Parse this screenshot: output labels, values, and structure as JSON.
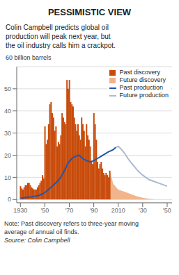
{
  "chart_data": {
    "type": "bar",
    "title": "PESSIMISTIC VIEW",
    "subtitle": "Colin Campbell predicts global oil\nproduction will peak next year, but\nthe oil industry calls him a crackpot.",
    "ylabel": "60 billion barrels",
    "note": "Note: Past discovery refers to three-year moving\naverage of annual oil finds.\nSource: Colin Campbell",
    "xlim": [
      1927,
      2054
    ],
    "xticks": [
      1930,
      {
        "value": 1950,
        "label": "'50"
      },
      {
        "value": 1970,
        "label": "'70"
      },
      {
        "value": 1990,
        "label": "'90"
      },
      2010,
      {
        "value": 2030,
        "label": "'30"
      },
      {
        "value": 2050,
        "label": "'50"
      }
    ],
    "ylim": [
      -1.5,
      60
    ],
    "yticks": [
      0,
      10,
      20,
      30,
      40,
      50
    ],
    "grid": true,
    "legend": "upper right",
    "series": [
      {
        "name": "Past discovery",
        "type": "bar",
        "color": "#C84B0A",
        "x": [
          1930,
          1931,
          1932,
          1933,
          1934,
          1935,
          1936,
          1937,
          1938,
          1939,
          1940,
          1941,
          1942,
          1943,
          1944,
          1945,
          1946,
          1947,
          1948,
          1949,
          1950,
          1951,
          1952,
          1953,
          1954,
          1955,
          1956,
          1957,
          1958,
          1959,
          1960,
          1961,
          1962,
          1963,
          1964,
          1965,
          1966,
          1967,
          1968,
          1969,
          1970,
          1971,
          1972,
          1973,
          1974,
          1975,
          1976,
          1977,
          1978,
          1979,
          1980,
          1981,
          1982,
          1983,
          1984,
          1985,
          1986,
          1987,
          1988,
          1989,
          1990,
          1991,
          1992,
          1993,
          1994,
          1995,
          1996,
          1997,
          1998,
          1999,
          2000,
          2001,
          2002,
          2003
        ],
        "values": [
          6,
          5,
          4.5,
          5.5,
          6.5,
          6.5,
          7.5,
          7.5,
          6.5,
          5.5,
          5,
          4.5,
          4.5,
          4.5,
          5.5,
          6.5,
          7.5,
          8.5,
          11,
          9.5,
          33,
          25,
          27,
          34,
          43,
          44,
          39,
          37,
          31,
          33,
          24,
          26,
          25,
          29,
          39,
          37,
          35,
          34,
          54,
          50,
          54,
          44,
          43,
          42,
          37,
          34,
          31,
          34,
          29,
          27,
          37,
          34,
          31,
          24,
          34,
          29,
          27,
          24,
          17,
          16,
          39,
          34,
          27,
          17,
          14,
          16,
          17,
          14,
          12,
          11,
          12,
          11,
          10,
          13
        ]
      },
      {
        "name": "Future discovery",
        "type": "area",
        "color": "#F2B48A",
        "x": [
          2003,
          2006,
          2010,
          2015,
          2020,
          2025,
          2030,
          2035,
          2040,
          2045,
          2050
        ],
        "values": [
          13,
          7,
          4.5,
          3.5,
          2.5,
          1.5,
          0.8,
          0.3,
          0,
          0,
          0
        ]
      },
      {
        "name": "Past production",
        "type": "line",
        "color": "#2255AA",
        "x": [
          1930,
          1933,
          1936,
          1939,
          1942,
          1945,
          1948,
          1951,
          1954,
          1957,
          1960,
          1963,
          1966,
          1969,
          1972,
          1975,
          1978,
          1981,
          1984,
          1987,
          1990,
          1993,
          1996,
          1999,
          2002,
          2004,
          2006,
          2008
        ],
        "values": [
          0.5,
          0.8,
          1.0,
          1.2,
          1.5,
          1.8,
          2.5,
          3.5,
          5.0,
          6.5,
          8.0,
          10.0,
          13.0,
          16.5,
          18.5,
          19.5,
          20.0,
          18.5,
          17.5,
          17.0,
          17.5,
          18.5,
          19.5,
          20.5,
          21.5,
          22.0,
          22.5,
          23.5
        ]
      },
      {
        "name": "Future production",
        "type": "line",
        "color": "#AABBD0",
        "x": [
          2008,
          2010,
          2012,
          2015,
          2018,
          2020,
          2023,
          2026,
          2030,
          2035,
          2040,
          2045,
          2050
        ],
        "values": [
          23.5,
          24.0,
          23.0,
          21.0,
          18.5,
          17.0,
          15.0,
          13.0,
          11.0,
          9.0,
          8.0,
          7.0,
          6.0
        ]
      }
    ]
  }
}
